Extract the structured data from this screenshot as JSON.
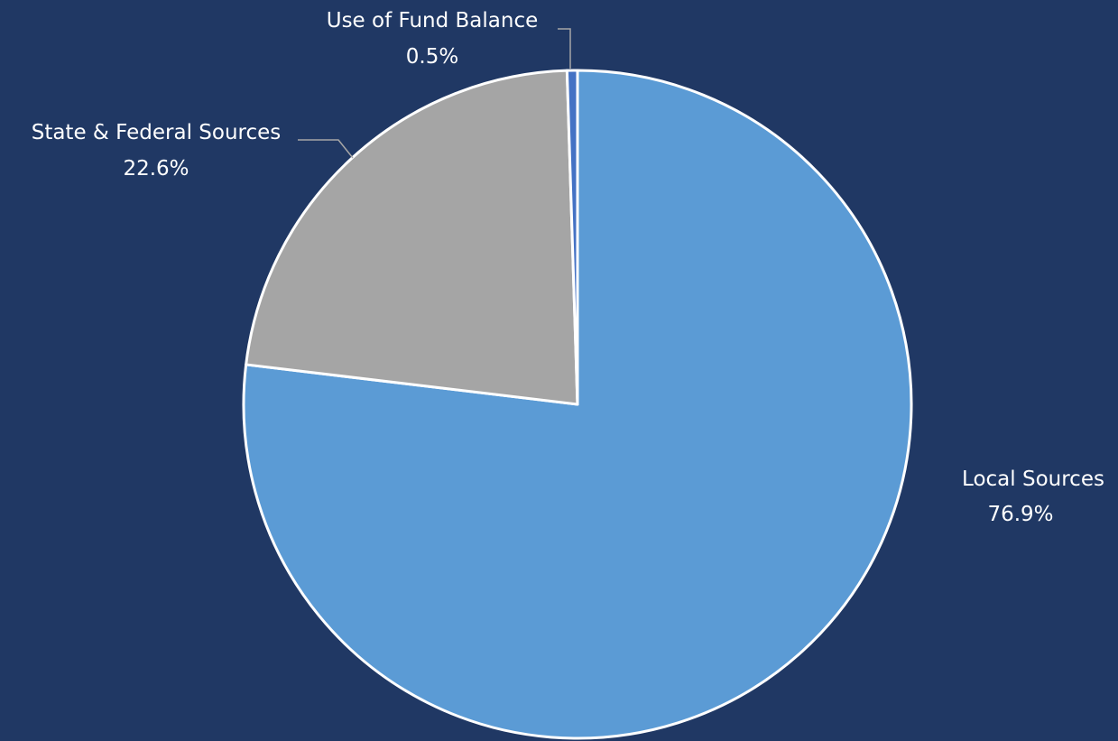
{
  "chart_data": {
    "type": "pie",
    "title": "",
    "categories": [
      "Local Sources",
      "State & Federal Sources",
      "Use of Fund Balance"
    ],
    "values": [
      76.9,
      22.6,
      0.5
    ],
    "value_labels": [
      "76.9%",
      "22.6%",
      "0.5%"
    ],
    "colors": [
      "#5b9bd5",
      "#a5a5a5",
      "#4472c4"
    ],
    "start_angle_deg": 0,
    "direction": "clockwise",
    "legend": "none",
    "background_color": "#203864",
    "label_color": "#ffffff",
    "border_color": "#ffffff"
  }
}
